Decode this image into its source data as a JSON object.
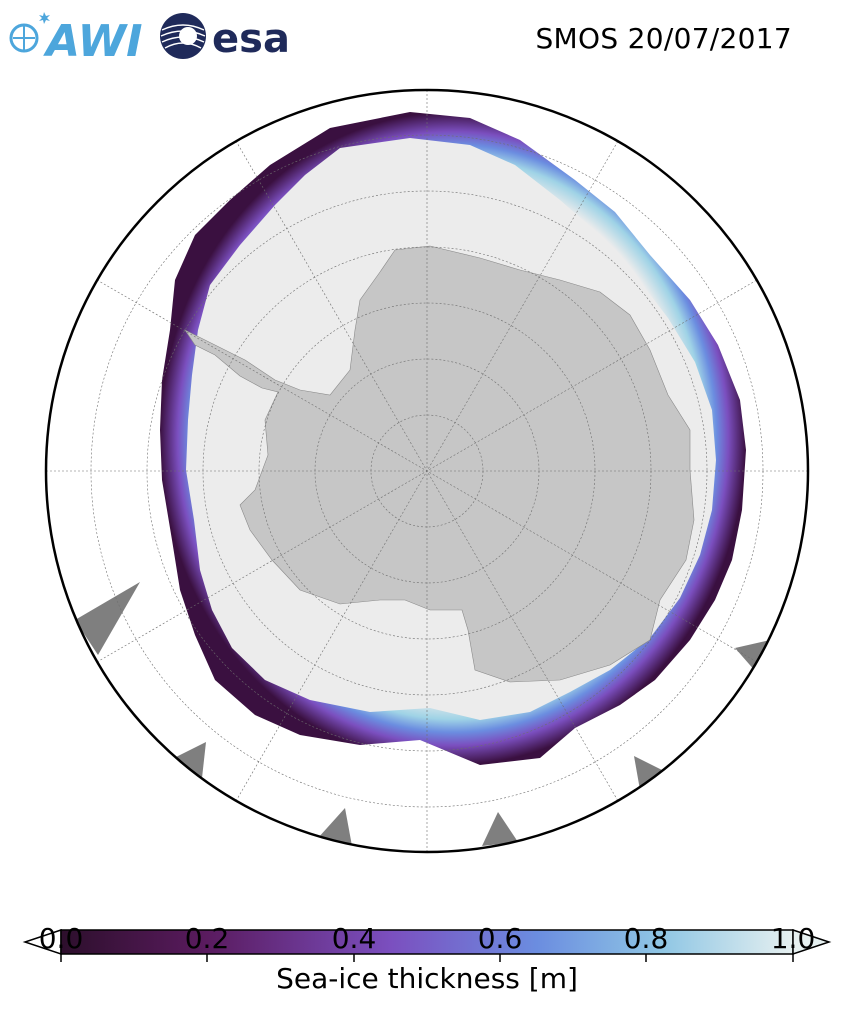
{
  "header": {
    "logo_awi": "AWI",
    "logo_esa": "esa",
    "title": "SMOS 20/07/2017"
  },
  "colorbar": {
    "label": "Sea-ice thickness [m]",
    "ticks": [
      "0.0",
      "0.2",
      "0.4",
      "0.6",
      "0.8",
      "1.0"
    ],
    "range": [
      0.0,
      1.0
    ],
    "extend": "both",
    "colormap": [
      "#2d0f2c",
      "#5a1b5f",
      "#7b4fbf",
      "#6b8de0",
      "#8fc6e4",
      "#e6f0f0"
    ]
  },
  "colors": {
    "land": "#c6c6c6",
    "thick_ice": "#ececec",
    "ocean": "#ffffff",
    "missing_data": "#7f7f7f",
    "brand_blue": "#4da6dc",
    "esa_navy": "#1f2a5a"
  },
  "map": {
    "projection": "south-polar-stereographic",
    "gridlines": true
  }
}
